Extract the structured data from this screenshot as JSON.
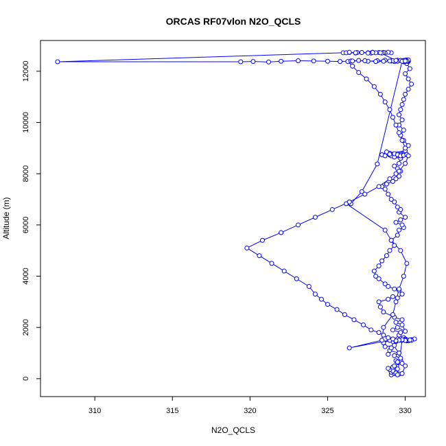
{
  "chart_data": {
    "type": "line",
    "title": "ORCAS RF07vlon N2O_QCLS",
    "xlabel": "N2O_QCLS",
    "ylabel": "Altitude (m)",
    "xlim": [
      306.5,
      331.3
    ],
    "ylim": [
      -700,
      13200
    ],
    "x_ticks": [
      310,
      315,
      320,
      325,
      330
    ],
    "y_ticks": [
      0,
      2000,
      4000,
      6000,
      8000,
      10000,
      12000
    ],
    "x_tick_labels": [
      "310",
      "315",
      "320",
      "325",
      "330"
    ],
    "y_tick_labels": [
      "0",
      "2000",
      "4000",
      "6000",
      "8000",
      "10000",
      "12000"
    ],
    "grid": false,
    "line_color": "#0000ff",
    "marker": "open-circle",
    "series": [
      {
        "x": [
          329.1,
          329.3,
          329.6,
          329.1,
          329.2,
          329.4,
          329.0,
          328.9,
          329.2,
          329.5,
          329.3,
          329.8,
          329.4,
          329.5,
          329.7,
          329.3,
          329.6,
          329.0,
          328.9,
          329.1,
          329.3,
          328.7,
          328.6,
          329.0,
          329.4,
          329.8,
          330.0,
          330.1,
          329.7,
          329.5,
          329.9,
          329.6,
          329.7,
          329.2,
          329.5,
          330.0,
          329.8,
          329.4,
          329.8,
          329.3,
          328.6,
          328.4,
          328.3,
          328.9,
          329.2,
          329.5,
          329.8,
          329.6,
          329.3,
          328.9,
          328.7,
          328.3,
          328.1,
          328.0,
          328.3,
          328.5,
          328.8,
          329.0,
          329.3,
          329.1,
          329.5,
          329.6,
          329.9,
          329.8,
          329.4,
          329.7,
          330.0,
          329.6,
          329.7,
          329.5,
          329.3,
          329.1,
          328.9,
          328.7,
          328.5,
          328.8,
          329.2,
          329.4,
          329.6,
          329.4,
          329.7,
          329.5,
          329.3,
          329.6,
          329.7,
          329.4,
          329.3,
          329.1,
          329.0,
          329.4,
          329.6,
          329.8,
          330.0,
          329.8,
          329.5,
          329.3,
          329.1,
          329.0,
          329.2,
          329.3,
          329.4,
          329.6,
          329.7,
          329.6,
          329.5,
          329.3,
          329.2,
          329.0,
          329.1,
          329.3,
          329.5,
          329.7,
          329.8,
          329.9,
          329.7,
          329.5,
          329.3,
          329.0,
          328.8,
          328.5,
          328.7,
          329.0,
          329.3,
          329.5,
          329.7,
          329.9,
          330.1,
          330.0,
          330.2,
          329.9,
          329.7,
          329.9,
          329.6,
          329.8,
          329.6,
          329.7,
          329.8,
          329.9,
          330.0,
          330.2,
          330.4,
          330.2,
          330.0,
          330.3,
          330.1,
          329.9,
          330.0,
          330.2,
          330.1,
          330.0,
          329.9,
          330.1,
          330.0,
          330.2,
          330.1,
          330.0,
          329.9,
          330.0,
          329.8,
          329.5,
          329.1,
          329.3,
          329.2,
          329.5,
          329.7,
          329.9,
          330.0,
          330.1,
          330.2,
          330.1,
          330.0,
          329.9,
          329.8,
          328.2,
          327.2,
          326.5,
          326.2,
          328.7,
          329.1,
          329.7,
          330.1,
          329.9,
          329.6,
          329.4,
          329.2,
          328.6,
          328.5,
          326.4,
          329.0,
          329.6,
          330.0,
          329.8,
          329.5,
          329.8,
          330.0,
          330.1,
          330.2,
          330.4,
          330.6,
          330.4,
          330.2,
          330.0,
          330.1,
          330.3,
          330.0,
          329.8,
          329.6,
          329.4,
          329.2,
          328.9,
          328.6,
          328.3,
          327.8,
          327.3,
          326.7,
          326.1,
          325.6,
          325.0,
          324.6,
          324.2,
          323.8,
          323.0,
          322.2,
          321.4,
          320.6,
          319.8,
          320.8,
          322.0,
          323.1,
          324.2,
          325.3,
          326.4,
          327.4,
          328.3,
          329.0,
          329.6,
          330.0,
          330.2,
          330.0,
          329.8,
          329.6,
          329.4,
          329.2,
          329.0,
          328.7,
          328.4,
          328.0,
          327.5,
          327.0,
          326.6,
          326.3,
          326.5,
          327.0,
          327.6,
          328.2,
          328.7,
          329.0,
          328.6,
          328.1,
          327.4,
          326.6,
          325.8,
          325.0,
          324.1,
          323.1,
          322.0,
          321.2,
          320.2,
          319.4,
          307.6,
          326.0,
          326.9,
          327.8,
          328.6,
          329.1,
          328.9,
          328.7,
          328.6,
          328.5,
          328.3,
          328.1,
          327.9,
          327.6,
          327.2,
          326.8,
          326.4,
          326.2,
          326.4,
          326.8,
          327.2,
          327.6,
          327.9,
          328.4,
          329.4,
          330.0
        ],
        "y": [
          150,
          200,
          180,
          250,
          300,
          220,
          350,
          400,
          450,
          380,
          500,
          600,
          700,
          650,
          800,
          900,
          1000,
          1100,
          950,
          1200,
          1300,
          1250,
          1400,
          1500,
          1450,
          1520,
          1550,
          1480,
          1500,
          1550,
          1600,
          1700,
          1800,
          1900,
          2000,
          1850,
          2100,
          2200,
          2300,
          2400,
          2600,
          2800,
          3000,
          3100,
          3200,
          3150,
          3300,
          3450,
          3500,
          3600,
          3700,
          3900,
          4000,
          4200,
          4400,
          4600,
          4800,
          5000,
          5200,
          5400,
          5600,
          5800,
          5900,
          6000,
          6100,
          6200,
          6300,
          6500,
          6600,
          6700,
          6900,
          7000,
          7200,
          7400,
          7500,
          7600,
          7700,
          7800,
          7900,
          8000,
          8100,
          8200,
          8300,
          8400,
          8600,
          8700,
          8750,
          8700,
          8780,
          8720,
          8760,
          8740,
          8780,
          8800,
          8750,
          8700,
          8740,
          8760,
          8720,
          8750,
          8700,
          8760,
          8790,
          8740,
          8700,
          8720,
          8760,
          8730,
          8700,
          8750,
          8780,
          8720,
          8700,
          8760,
          8740,
          8700,
          8650,
          8800,
          8850,
          8740,
          8700,
          8760,
          8780,
          8740,
          8700,
          8720,
          8750,
          8900,
          9100,
          9300,
          9500,
          9700,
          9900,
          10100,
          10300,
          10500,
          10700,
          10900,
          11100,
          11300,
          11500,
          11700,
          11900,
          12100,
          12300,
          12400,
          12420,
          12380,
          12410,
          12390,
          12420,
          12400,
          12380,
          12410,
          12440,
          12400,
          12370,
          12390,
          12410,
          12430,
          12400,
          12380,
          12410,
          12390,
          12420,
          12400,
          12380,
          12410,
          12440,
          12400,
          12430,
          12410,
          12390,
          8380,
          7300,
          6830,
          6830,
          5800,
          5400,
          5000,
          4500,
          4000,
          3500,
          3000,
          2500,
          2000,
          1500,
          1200,
          1500,
          1000,
          500,
          200,
          150,
          1500,
          1550,
          1480,
          1500,
          1520,
          1550,
          1500,
          1480,
          1520,
          1500,
          1510,
          1490,
          1520,
          1500,
          1480,
          1550,
          1600,
          1700,
          1800,
          1900,
          2100,
          2300,
          2500,
          2700,
          2900,
          3100,
          3300,
          3600,
          3900,
          4200,
          4500,
          4800,
          5100,
          5400,
          5700,
          6000,
          6300,
          6600,
          6900,
          7200,
          7500,
          7800,
          8100,
          8400,
          8700,
          9000,
          9300,
          9600,
          9900,
          10200,
          10500,
          10800,
          11100,
          11400,
          11700,
          11950,
          12200,
          12380,
          12400,
          12420,
          12390,
          12410,
          12430,
          12400,
          12390,
          12380,
          12410,
          12400,
          12380,
          12390,
          12400,
          12410,
          12390,
          12360,
          12380,
          12370,
          12370,
          12720,
          12730,
          12710,
          12730,
          12720,
          12740,
          12720,
          12730,
          12710,
          12730,
          12720,
          12740,
          12720,
          12730,
          12710,
          12730,
          12720,
          12740,
          12720,
          12730,
          12710,
          12730,
          12720,
          12420,
          12400
        ]
      }
    ]
  }
}
